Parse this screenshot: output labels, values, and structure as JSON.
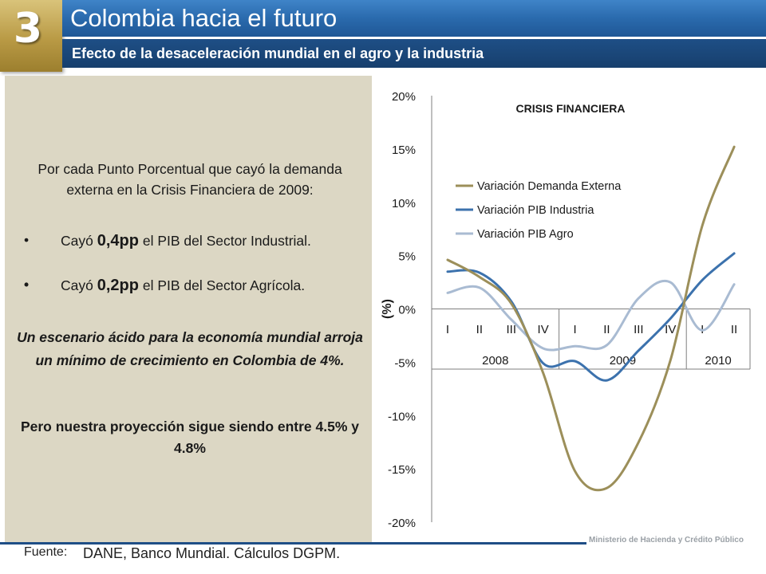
{
  "header": {
    "badge_number": "3",
    "title": "Colombia hacia el futuro",
    "subtitle": "Efecto de la desaceleración mundial en el agro y la industria"
  },
  "left_panel": {
    "intro": "Por cada Punto Porcentual que cayó la demanda externa en la Crisis Financiera de 2009:",
    "bullets": [
      {
        "symbol": "•",
        "prefix": "Cayó ",
        "value": "0,4pp",
        "suffix": " el PIB del Sector Industrial."
      },
      {
        "symbol": "•",
        "prefix": "Cayó ",
        "value": "0,2pp",
        "suffix": " el PIB del Sector Agrícola."
      }
    ],
    "scenario": "Un escenario ácido para la economía mundial arroja un mínimo de crecimiento en Colombia de 4%.",
    "projection": "Pero nuestra proyección sigue siendo entre 4.5% y 4.8%"
  },
  "footer": {
    "source_label": "Fuente:",
    "source_text": "DANE, Banco Mundial. Cálculos DGPM.",
    "ministry": "Ministerio de Hacienda y Crédito Público"
  },
  "chart_data": {
    "type": "line",
    "annotation": "CRISIS FINANCIERA",
    "ylabel": "(%)",
    "ylim": [
      -20,
      20
    ],
    "yticks": [
      "20%",
      "15%",
      "10%",
      "5%",
      "0%",
      "-5%",
      "-10%",
      "-15%",
      "-20%"
    ],
    "ytick_values": [
      20,
      15,
      10,
      5,
      0,
      -5,
      -10,
      -15,
      -20
    ],
    "categories": [
      "I",
      "II",
      "III",
      "IV",
      "I",
      "II",
      "III",
      "IV",
      "I",
      "II"
    ],
    "year_groups": [
      {
        "label": "2008",
        "count": 4
      },
      {
        "label": "2009",
        "count": 4
      },
      {
        "label": "2010",
        "count": 2
      }
    ],
    "legend_position": "upper-left",
    "series": [
      {
        "name": "Variación Demanda Externa",
        "color": "#9c8f5a",
        "values": [
          4.6,
          3.0,
          0.5,
          -6.0,
          -15.2,
          -16.8,
          -12.5,
          -4.8,
          7.8,
          15.2
        ]
      },
      {
        "name": "Variación PIB Industria",
        "color": "#3c72ad",
        "values": [
          3.5,
          3.4,
          0.7,
          -5.1,
          -4.9,
          -6.7,
          -3.9,
          -0.9,
          2.7,
          5.2
        ]
      },
      {
        "name": "Variación PIB Agro",
        "color": "#a9bbd2",
        "values": [
          1.5,
          2.0,
          -1.0,
          -3.7,
          -3.5,
          -3.4,
          1.0,
          2.5,
          -2.0,
          2.3
        ]
      }
    ]
  }
}
